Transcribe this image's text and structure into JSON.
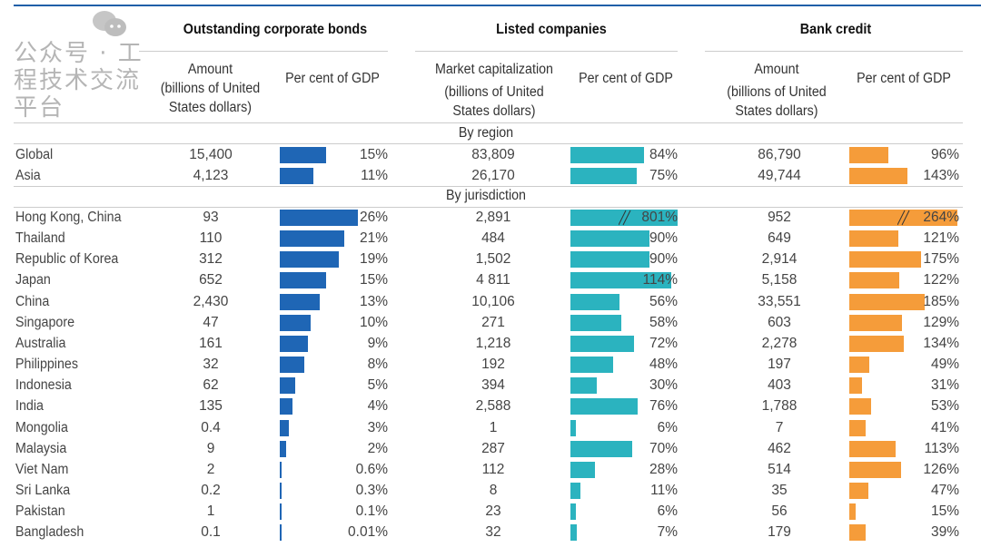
{
  "groups": [
    "Outstanding corporate bonds",
    "Listed companies",
    "Bank credit"
  ],
  "subheaders": {
    "bonds_amount": [
      "Amount",
      "(billions of United",
      "States dollars)"
    ],
    "bonds_pct": "Per cent of GDP",
    "listed_amount": [
      "Market capitalization",
      "(billions of United",
      "States dollars)"
    ],
    "listed_pct": "Per cent of GDP",
    "bank_amount": [
      "Amount",
      "(billions of United",
      "States dollars)"
    ],
    "bank_pct": "Per cent of GDP"
  },
  "sections": {
    "region": "By region",
    "jurisdiction": "By jurisdiction"
  },
  "colors": {
    "bonds": "#1f66b5",
    "listed": "#2bb3bf",
    "bank": "#f59c3a",
    "rule": "#1f5fa8"
  },
  "region_rows": [
    {
      "name": "Global",
      "ba": "15,400",
      "bp": "15%",
      "bv": 15,
      "la": "83,809",
      "lp": "84%",
      "lv": 84,
      "ka": "86,790",
      "kp": "96%",
      "kv": 96
    },
    {
      "name": "Asia",
      "ba": "4,123",
      "bp": "11%",
      "bv": 11,
      "la": "26,170",
      "lp": "75%",
      "lv": 75,
      "ka": "49,744",
      "kp": "143%",
      "kv": 143
    }
  ],
  "jurisdiction_rows": [
    {
      "name": "Hong Kong, China",
      "ba": "93",
      "bp": "26%",
      "bv": 26,
      "la": "2,891",
      "lp": "801%",
      "lv": 801,
      "ka": "952",
      "kp": "264%",
      "kv": 264,
      "broken": true
    },
    {
      "name": "Thailand",
      "ba": "110",
      "bp": "21%",
      "bv": 21,
      "la": "484",
      "lp": "90%",
      "lv": 90,
      "ka": "649",
      "kp": "121%",
      "kv": 121
    },
    {
      "name": "Republic of Korea",
      "ba": "312",
      "bp": "19%",
      "bv": 19,
      "la": "1,502",
      "lp": "90%",
      "lv": 90,
      "ka": "2,914",
      "kp": "175%",
      "kv": 175
    },
    {
      "name": "Japan",
      "ba": "652",
      "bp": "15%",
      "bv": 15,
      "la": "4 811",
      "lp": "114%",
      "lv": 114,
      "ka": "5,158",
      "kp": "122%",
      "kv": 122
    },
    {
      "name": "China",
      "ba": "2,430",
      "bp": "13%",
      "bv": 13,
      "la": "10,106",
      "lp": "56%",
      "lv": 56,
      "ka": "33,551",
      "kp": "185%",
      "kv": 185
    },
    {
      "name": "Singapore",
      "ba": "47",
      "bp": "10%",
      "bv": 10,
      "la": "271",
      "lp": "58%",
      "lv": 58,
      "ka": "603",
      "kp": "129%",
      "kv": 129
    },
    {
      "name": "Australia",
      "ba": "161",
      "bp": "9%",
      "bv": 9,
      "la": "1,218",
      "lp": "72%",
      "lv": 72,
      "ka": "2,278",
      "kp": "134%",
      "kv": 134
    },
    {
      "name": "Philippines",
      "ba": "32",
      "bp": "8%",
      "bv": 8,
      "la": "192",
      "lp": "48%",
      "lv": 48,
      "ka": "197",
      "kp": "49%",
      "kv": 49
    },
    {
      "name": "Indonesia",
      "ba": "62",
      "bp": "5%",
      "bv": 5,
      "la": "394",
      "lp": "30%",
      "lv": 30,
      "ka": "403",
      "kp": "31%",
      "kv": 31
    },
    {
      "name": "India",
      "ba": "135",
      "bp": "4%",
      "bv": 4,
      "la": "2,588",
      "lp": "76%",
      "lv": 76,
      "ka": "1,788",
      "kp": "53%",
      "kv": 53
    },
    {
      "name": "Mongolia",
      "ba": "0.4",
      "bp": "3%",
      "bv": 3,
      "la": "1",
      "lp": "6%",
      "lv": 6,
      "ka": "7",
      "kp": "41%",
      "kv": 41
    },
    {
      "name": "Malaysia",
      "ba": "9",
      "bp": "2%",
      "bv": 2,
      "la": "287",
      "lp": "70%",
      "lv": 70,
      "ka": "462",
      "kp": "113%",
      "kv": 113
    },
    {
      "name": "Viet Nam",
      "ba": "2",
      "bp": "0.6%",
      "bv": 0.6,
      "la": "112",
      "lp": "28%",
      "lv": 28,
      "ka": "514",
      "kp": "126%",
      "kv": 126
    },
    {
      "name": "Sri Lanka",
      "ba": "0.2",
      "bp": "0.3%",
      "bv": 0.3,
      "la": "8",
      "lp": "11%",
      "lv": 11,
      "ka": "35",
      "kp": "47%",
      "kv": 47
    },
    {
      "name": "Pakistan",
      "ba": "1",
      "bp": "0.1%",
      "bv": 0.1,
      "la": "23",
      "lp": "6%",
      "lv": 6,
      "ka": "56",
      "kp": "15%",
      "kv": 15
    },
    {
      "name": "Bangladesh",
      "ba": "0.1",
      "bp": "0.01%",
      "bv": 0.01,
      "la": "32",
      "lp": "7%",
      "lv": 7,
      "ka": "179",
      "kp": "39%",
      "kv": 39
    }
  ],
  "watermark": "公众号 · 工程技术交流平台"
}
